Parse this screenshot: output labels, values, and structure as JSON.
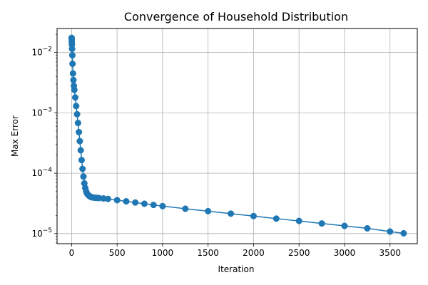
{
  "chart_data": {
    "type": "scatter",
    "title": "Convergence of Household Distribution",
    "xlabel": "Iteration",
    "ylabel": "Max Error",
    "yscale": "log",
    "xlim": [
      -160,
      3800
    ],
    "ylim": [
      6.8e-06,
      0.025
    ],
    "xticks": [
      0,
      500,
      1000,
      1500,
      2000,
      2500,
      3000,
      3500
    ],
    "xtick_labels": [
      "0",
      "500",
      "1000",
      "1500",
      "2000",
      "2500",
      "3000",
      "3500"
    ],
    "yticks": [
      1e-05,
      0.0001,
      0.001,
      0.01
    ],
    "ytick_labels": [
      {
        "base": "10",
        "exp": "−5"
      },
      {
        "base": "10",
        "exp": "−4"
      },
      {
        "base": "10",
        "exp": "−3"
      },
      {
        "base": "10",
        "exp": "−2"
      }
    ],
    "grid": true,
    "marker": "circle",
    "marker_color": "#1f77b4",
    "line_color": "#1f77b4",
    "series": [
      {
        "x": [
          0,
          1,
          2,
          3,
          5,
          8,
          10,
          15,
          20,
          25,
          30,
          40,
          50,
          60,
          70,
          80,
          90,
          100,
          110,
          120,
          130,
          140,
          150,
          160,
          170,
          180,
          190,
          200,
          210,
          220,
          240,
          260,
          280,
          300,
          350,
          400,
          500,
          600,
          700,
          800,
          900,
          1000,
          1250,
          1500,
          1750,
          2000,
          2250,
          2500,
          2750,
          3000,
          3250,
          3500,
          3650
        ],
        "y": [
          0.0175,
          0.0165,
          0.015,
          0.0135,
          0.0115,
          0.009,
          0.0065,
          0.0045,
          0.0035,
          0.0028,
          0.0024,
          0.0018,
          0.0013,
          0.00095,
          0.00068,
          0.00048,
          0.00034,
          0.00024,
          0.000165,
          0.000118,
          8.8e-05,
          6.8e-05,
          5.7e-05,
          5e-05,
          4.6e-05,
          4.4e-05,
          4.25e-05,
          4.15e-05,
          4.05e-05,
          4e-05,
          3.95e-05,
          3.92e-05,
          3.9e-05,
          3.88e-05,
          3.82e-05,
          3.75e-05,
          3.58e-05,
          3.42e-05,
          3.27e-05,
          3.12e-05,
          2.98e-05,
          2.85e-05,
          2.58e-05,
          2.35e-05,
          2.14e-05,
          1.95e-05,
          1.77e-05,
          1.62e-05,
          1.47e-05,
          1.34e-05,
          1.22e-05,
          1.08e-05,
          1.01e-05
        ]
      }
    ]
  }
}
